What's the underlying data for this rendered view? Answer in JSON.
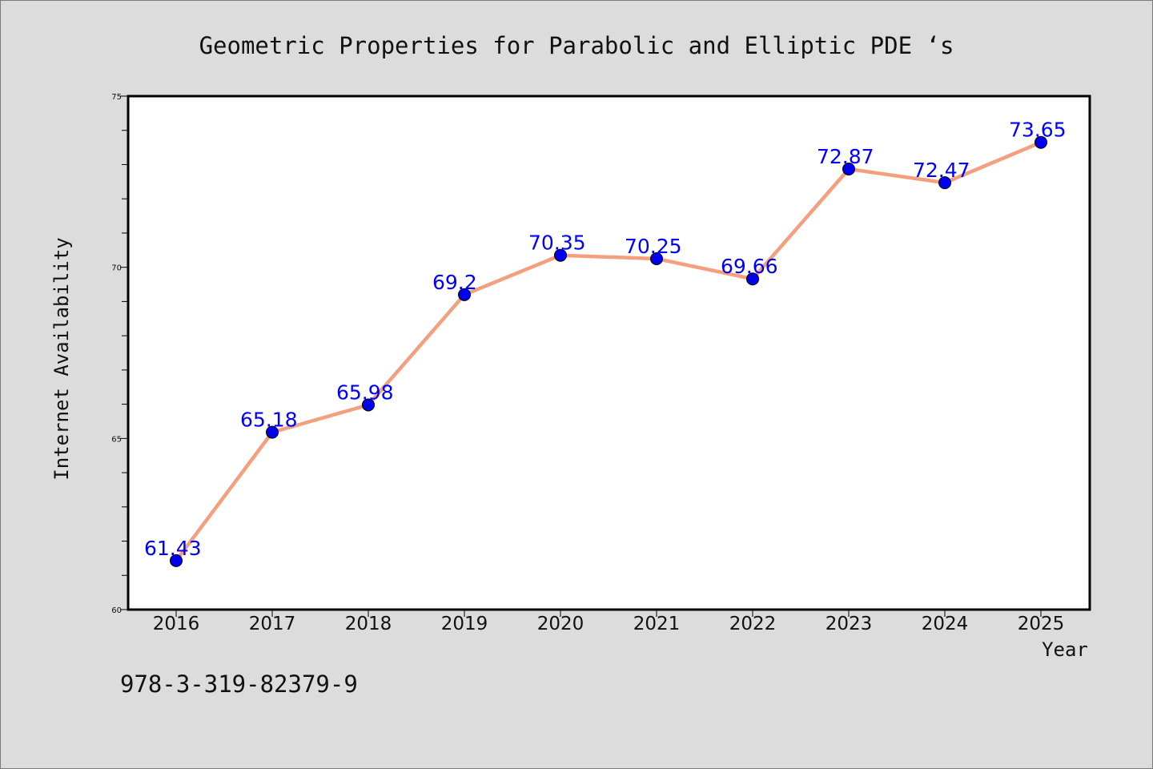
{
  "chart_data": {
    "type": "line",
    "title": "Geometric Properties for Parabolic and Elliptic PDE ‘s",
    "xlabel": "Year",
    "ylabel": "Internet Availability",
    "ylim": [
      60,
      75
    ],
    "y_major_ticks": [
      60,
      65,
      70,
      75
    ],
    "y_minor_step": 1,
    "categories": [
      "2016",
      "2017",
      "2018",
      "2019",
      "2020",
      "2021",
      "2022",
      "2023",
      "2024",
      "2025"
    ],
    "series": [
      {
        "values": [
          61.43,
          65.18,
          65.98,
          69.2,
          70.35,
          70.25,
          69.66,
          72.87,
          72.47,
          73.65
        ],
        "labels": [
          "61.43",
          "65.18",
          "65.98",
          "69.2",
          "70.35",
          "70.25",
          "69.66",
          "72.87",
          "72.47",
          "73.65"
        ],
        "line_color": "#f4a07e",
        "marker_color": "#0000ee"
      }
    ],
    "label_color": "#0000ff",
    "grid": false,
    "legend": "none"
  },
  "footer": {
    "isbn": "978-3-319-82379-9"
  },
  "colors": {
    "background": "#dcdcdc",
    "plot_area": "#ffffff"
  }
}
